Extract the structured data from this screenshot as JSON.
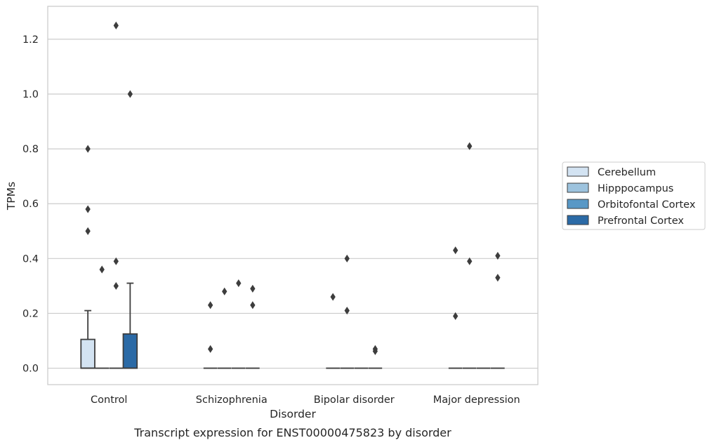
{
  "chart_data": {
    "type": "boxplot",
    "caption": "Transcript expression for ENST00000475823 by disorder",
    "xlabel": "Disorder",
    "ylabel": "TPMs",
    "ylim": [
      -0.06,
      1.32
    ],
    "yticks": [
      0.0,
      0.2,
      0.4,
      0.6,
      0.8,
      1.0,
      1.2
    ],
    "ytick_labels": [
      "0.0",
      "0.2",
      "0.4",
      "0.6",
      "0.8",
      "1.0",
      "1.2"
    ],
    "grid": "horizontal",
    "categories": [
      "Control",
      "Schizophrenia",
      "Bipolar disorder",
      "Major depression"
    ],
    "legend": {
      "placement": "right"
    },
    "series": [
      {
        "name": "Cerebellum",
        "color": "#d3e3f2",
        "boxes": [
          {
            "q1": 0.0,
            "median": 0.0,
            "q3": 0.105,
            "whisker_low": 0.0,
            "whisker_high": 0.21,
            "outliers": [
              0.5,
              0.58,
              0.8
            ]
          },
          {
            "q1": 0.0,
            "median": 0.0,
            "q3": 0.0,
            "whisker_low": 0.0,
            "whisker_high": 0.0,
            "outliers": [
              0.07,
              0.23
            ]
          },
          {
            "q1": 0.0,
            "median": 0.0,
            "q3": 0.0,
            "whisker_low": 0.0,
            "whisker_high": 0.0,
            "outliers": [
              0.26
            ]
          },
          {
            "q1": 0.0,
            "median": 0.0,
            "q3": 0.0,
            "whisker_low": 0.0,
            "whisker_high": 0.0,
            "outliers": [
              0.19,
              0.43
            ]
          }
        ]
      },
      {
        "name": "Hipppocampus",
        "color": "#9dc3de",
        "boxes": [
          {
            "q1": 0.0,
            "median": 0.0,
            "q3": 0.0,
            "whisker_low": 0.0,
            "whisker_high": 0.0,
            "outliers": [
              0.36
            ]
          },
          {
            "q1": 0.0,
            "median": 0.0,
            "q3": 0.0,
            "whisker_low": 0.0,
            "whisker_high": 0.0,
            "outliers": [
              0.28
            ]
          },
          {
            "q1": 0.0,
            "median": 0.0,
            "q3": 0.0,
            "whisker_low": 0.0,
            "whisker_high": 0.0,
            "outliers": [
              0.21,
              0.4
            ]
          },
          {
            "q1": 0.0,
            "median": 0.0,
            "q3": 0.0,
            "whisker_low": 0.0,
            "whisker_high": 0.0,
            "outliers": [
              0.39,
              0.81
            ]
          }
        ]
      },
      {
        "name": "Orbitofontal Cortex",
        "color": "#5898c6",
        "boxes": [
          {
            "q1": 0.0,
            "median": 0.0,
            "q3": 0.0,
            "whisker_low": 0.0,
            "whisker_high": 0.0,
            "outliers": [
              0.3,
              0.39,
              1.25
            ]
          },
          {
            "q1": 0.0,
            "median": 0.0,
            "q3": 0.0,
            "whisker_low": 0.0,
            "whisker_high": 0.0,
            "outliers": [
              0.31
            ]
          },
          {
            "q1": 0.0,
            "median": 0.0,
            "q3": 0.0,
            "whisker_low": 0.0,
            "whisker_high": 0.0,
            "outliers": []
          },
          {
            "q1": 0.0,
            "median": 0.0,
            "q3": 0.0,
            "whisker_low": 0.0,
            "whisker_high": 0.0,
            "outliers": []
          }
        ]
      },
      {
        "name": "Prefrontal Cortex",
        "color": "#2b6aa6",
        "boxes": [
          {
            "q1": 0.0,
            "median": 0.0,
            "q3": 0.125,
            "whisker_low": 0.0,
            "whisker_high": 0.31,
            "outliers": [
              1.0
            ]
          },
          {
            "q1": 0.0,
            "median": 0.0,
            "q3": 0.0,
            "whisker_low": 0.0,
            "whisker_high": 0.0,
            "outliers": [
              0.23,
              0.29
            ]
          },
          {
            "q1": 0.0,
            "median": 0.0,
            "q3": 0.0,
            "whisker_low": 0.0,
            "whisker_high": 0.0,
            "outliers": [
              0.062,
              0.07
            ]
          },
          {
            "q1": 0.0,
            "median": 0.0,
            "q3": 0.0,
            "whisker_low": 0.0,
            "whisker_high": 0.0,
            "outliers": [
              0.33,
              0.41
            ]
          }
        ]
      }
    ]
  }
}
